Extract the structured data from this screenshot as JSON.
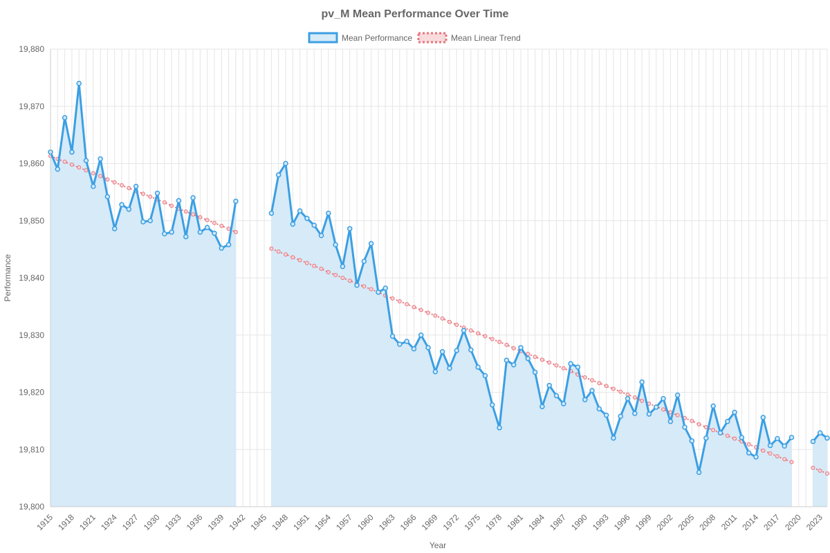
{
  "chart_data": {
    "type": "line",
    "title": "pv_M Mean Performance Over Time",
    "xlabel": "Year",
    "ylabel": "Performance",
    "xlim": [
      1915,
      2024
    ],
    "ylim": [
      19800,
      19880
    ],
    "y_ticks": [
      19800,
      19810,
      19820,
      19830,
      19840,
      19850,
      19860,
      19870,
      19880
    ],
    "y_tick_labels": [
      "19,800",
      "19,810",
      "19,820",
      "19,830",
      "19,840",
      "19,850",
      "19,860",
      "19,870",
      "19,880"
    ],
    "x_tick_labels": [
      "1915",
      "1918",
      "1921",
      "1924",
      "1927",
      "1930",
      "1933",
      "1936",
      "1939",
      "1942",
      "1945",
      "1948",
      "1951",
      "1954",
      "1957",
      "1960",
      "1963",
      "1966",
      "1969",
      "1972",
      "1975",
      "1978",
      "1981",
      "1984",
      "1987",
      "1990",
      "1993",
      "1996",
      "1999",
      "2002",
      "2005",
      "2008",
      "2011",
      "2014",
      "2017",
      "2020",
      "2023"
    ],
    "grid": true,
    "legend_position": "top",
    "series": [
      {
        "name": "Mean Performance",
        "color": "#3b9fe3",
        "fill": "#d6eaf8",
        "style": "solid",
        "filled": true,
        "x": [
          1915,
          1916,
          1917,
          1918,
          1919,
          1920,
          1921,
          1922,
          1923,
          1924,
          1925,
          1926,
          1927,
          1928,
          1929,
          1930,
          1931,
          1932,
          1933,
          1934,
          1935,
          1936,
          1937,
          1938,
          1939,
          1940,
          1941,
          1946,
          1947,
          1948,
          1949,
          1950,
          1951,
          1952,
          1953,
          1954,
          1955,
          1956,
          1957,
          1958,
          1959,
          1960,
          1961,
          1962,
          1963,
          1964,
          1965,
          1966,
          1967,
          1968,
          1969,
          1970,
          1971,
          1972,
          1973,
          1974,
          1975,
          1976,
          1977,
          1978,
          1979,
          1980,
          1981,
          1982,
          1983,
          1984,
          1985,
          1986,
          1987,
          1988,
          1989,
          1990,
          1991,
          1992,
          1993,
          1994,
          1995,
          1996,
          1997,
          1998,
          1999,
          2000,
          2001,
          2002,
          2003,
          2004,
          2005,
          2006,
          2007,
          2008,
          2009,
          2010,
          2011,
          2012,
          2013,
          2014,
          2015,
          2016,
          2017,
          2018,
          2019,
          2022,
          2023,
          2024
        ],
        "values": [
          19862.0,
          19859.0,
          19868.0,
          19862.0,
          19874.0,
          19860.5,
          19856.0,
          19860.8,
          19854.2,
          19848.6,
          19852.8,
          19852.0,
          19856.0,
          19849.8,
          19850.0,
          19854.8,
          19847.7,
          19848.0,
          19853.5,
          19847.2,
          19854.0,
          19848.0,
          19848.8,
          19847.8,
          19845.2,
          19845.8,
          19853.4,
          19851.3,
          19858.0,
          19860.0,
          19849.4,
          19851.7,
          19850.4,
          19849.2,
          19847.4,
          19851.3,
          19845.8,
          19842.0,
          19848.6,
          19838.7,
          19842.9,
          19846.0,
          19837.5,
          19838.2,
          19829.8,
          19828.4,
          19828.9,
          19827.6,
          19830.0,
          19827.8,
          19823.6,
          19827.1,
          19824.2,
          19827.3,
          19830.8,
          19827.4,
          19824.4,
          19822.9,
          19817.8,
          19813.8,
          19825.6,
          19824.8,
          19827.8,
          19825.9,
          19823.5,
          19817.5,
          19821.2,
          19819.4,
          19818.0,
          19825.0,
          19824.4,
          19818.7,
          19820.3,
          19817.1,
          19816.0,
          19812.0,
          19815.8,
          19818.9,
          19816.3,
          19821.8,
          19816.2,
          19817.4,
          19818.9,
          19814.9,
          19819.5,
          19813.9,
          19811.5,
          19806.0,
          19812.0,
          19817.6,
          19812.9,
          19814.9,
          19816.5,
          19812.1,
          19809.4,
          19808.7,
          19815.6,
          19810.7,
          19811.9,
          19810.6,
          19812.1,
          19811.4,
          19812.9,
          19812.0
        ]
      },
      {
        "name": "Mean Linear Trend",
        "color": "#e8737b",
        "style": "dotted",
        "filled": false,
        "x": [
          1915,
          1916,
          1917,
          1918,
          1919,
          1920,
          1921,
          1922,
          1923,
          1924,
          1925,
          1926,
          1927,
          1928,
          1929,
          1930,
          1931,
          1932,
          1933,
          1934,
          1935,
          1936,
          1937,
          1938,
          1939,
          1940,
          1941,
          1946,
          1947,
          1948,
          1949,
          1950,
          1951,
          1952,
          1953,
          1954,
          1955,
          1956,
          1957,
          1958,
          1959,
          1960,
          1961,
          1962,
          1963,
          1964,
          1965,
          1966,
          1967,
          1968,
          1969,
          1970,
          1971,
          1972,
          1973,
          1974,
          1975,
          1976,
          1977,
          1978,
          1979,
          1980,
          1981,
          1982,
          1983,
          1984,
          1985,
          1986,
          1987,
          1988,
          1989,
          1990,
          1991,
          1992,
          1993,
          1994,
          1995,
          1996,
          1997,
          1998,
          1999,
          2000,
          2001,
          2002,
          2003,
          2004,
          2005,
          2006,
          2007,
          2008,
          2009,
          2010,
          2011,
          2012,
          2013,
          2014,
          2015,
          2016,
          2017,
          2018,
          2019,
          2022,
          2023,
          2024
        ],
        "values": [
          19861.3,
          19860.8,
          19860.3,
          19859.8,
          19859.3,
          19858.8,
          19858.3,
          19857.8,
          19857.2,
          19856.7,
          19856.2,
          19855.7,
          19855.2,
          19854.7,
          19854.2,
          19853.7,
          19853.2,
          19852.6,
          19852.1,
          19851.6,
          19851.1,
          19850.6,
          19850.1,
          19849.6,
          19849.1,
          19848.6,
          19848.0,
          19845.1,
          19844.6,
          19844.1,
          19843.6,
          19843.1,
          19842.6,
          19842.1,
          19841.6,
          19841.0,
          19840.5,
          19840.0,
          19839.5,
          19839.0,
          19838.5,
          19838.0,
          19837.5,
          19836.9,
          19836.4,
          19835.9,
          19835.4,
          19834.9,
          19834.4,
          19833.9,
          19833.4,
          19832.9,
          19832.3,
          19831.8,
          19831.3,
          19830.8,
          19830.3,
          19829.8,
          19829.3,
          19828.8,
          19828.3,
          19827.7,
          19827.2,
          19826.7,
          19826.2,
          19825.7,
          19825.2,
          19824.7,
          19824.2,
          19823.7,
          19823.1,
          19822.6,
          19822.1,
          19821.6,
          19821.1,
          19820.6,
          19820.1,
          19819.6,
          19819.1,
          19818.5,
          19818.0,
          19817.5,
          19817.0,
          19816.5,
          19816.0,
          19815.5,
          19815.0,
          19814.4,
          19813.9,
          19813.4,
          19812.9,
          19812.4,
          19811.9,
          19811.4,
          19810.9,
          19810.4,
          19809.8,
          19809.3,
          19808.8,
          19808.3,
          19807.8,
          19806.8,
          19806.3,
          19805.8
        ]
      }
    ]
  }
}
